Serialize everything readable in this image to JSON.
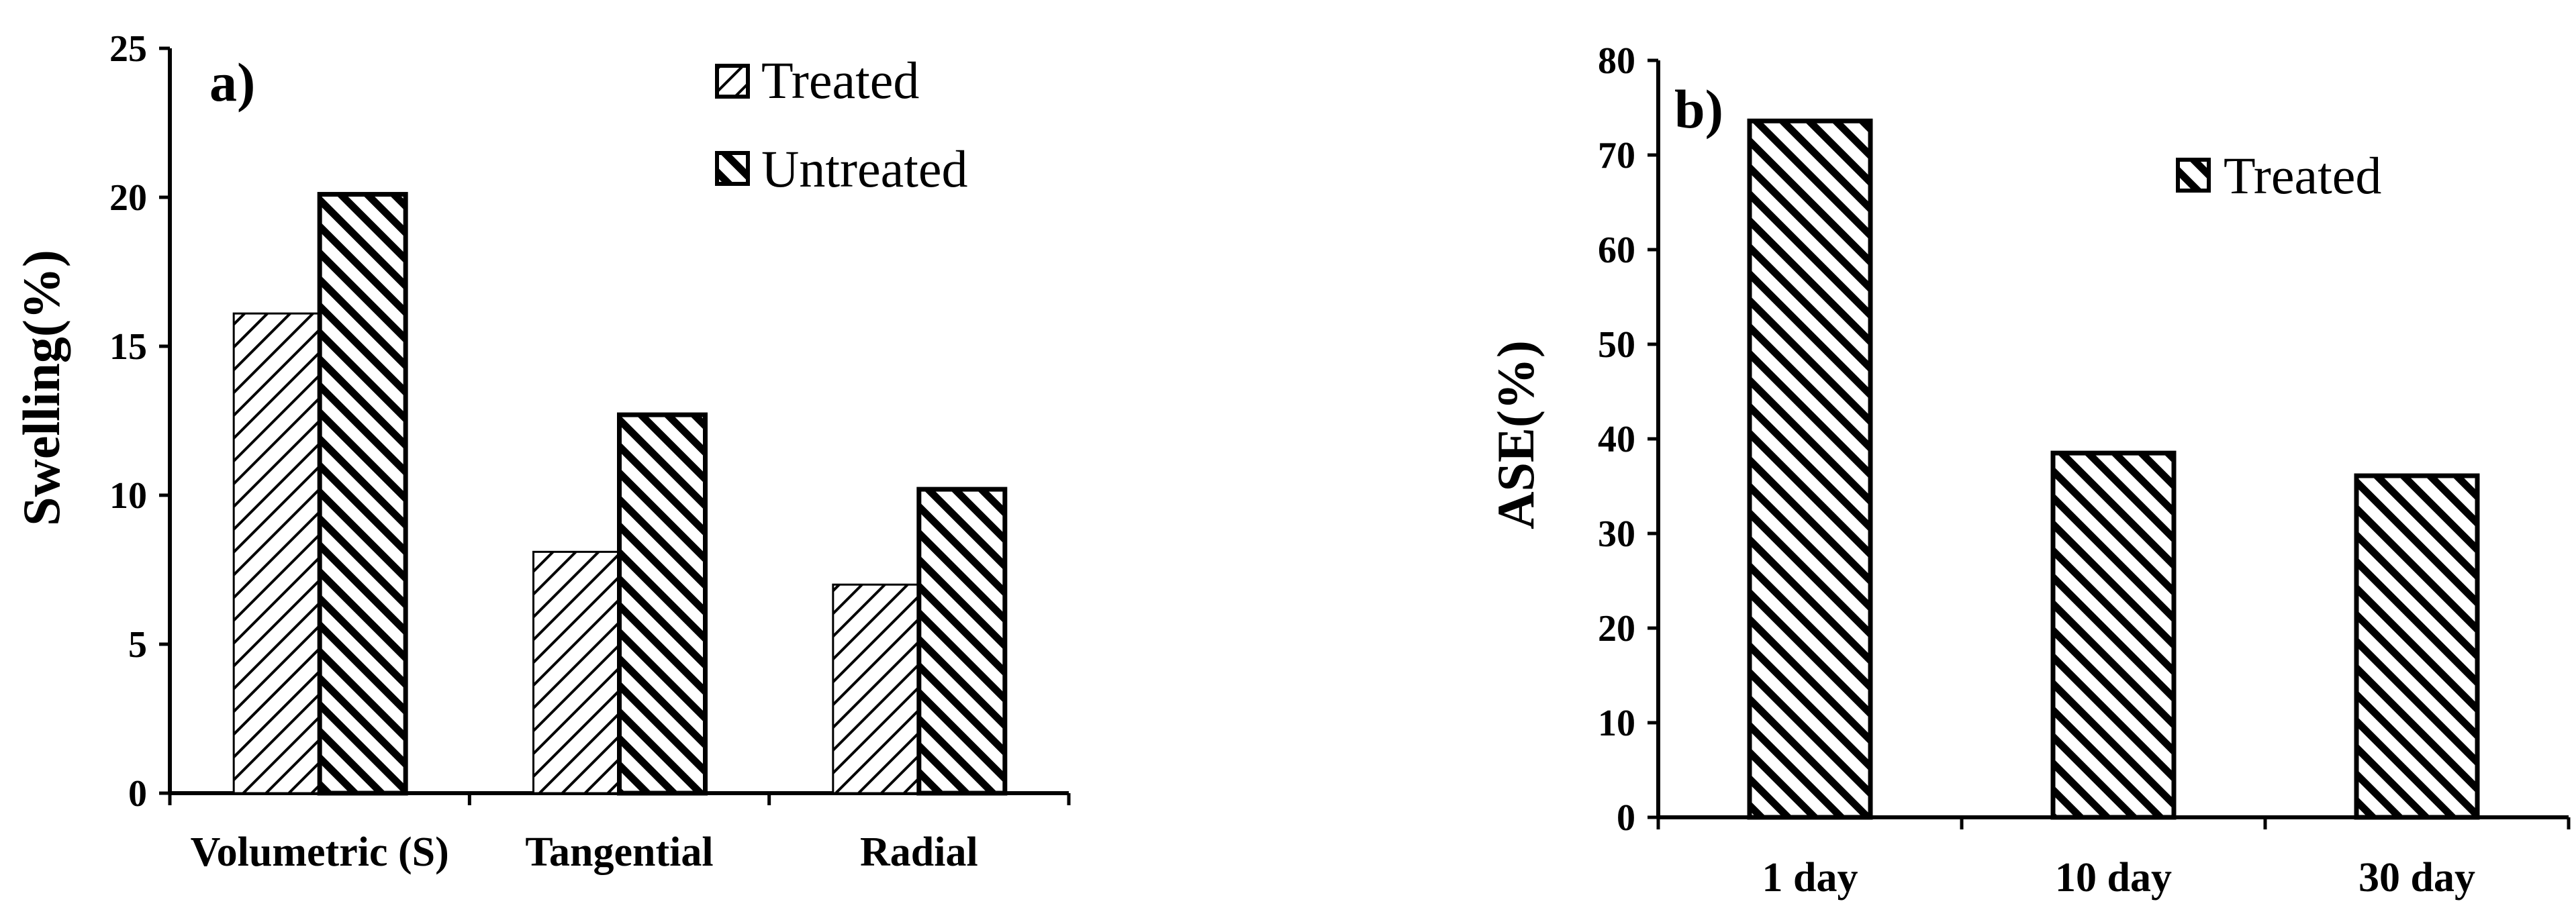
{
  "chart_data": [
    {
      "type": "bar",
      "panel_label": "a)",
      "categories": [
        "Volumetric (S)",
        "Tangential",
        "Radial"
      ],
      "series": [
        {
          "name": "Treated",
          "values": [
            16.1,
            8.1,
            7.0
          ],
          "pattern": "light-backslash-hatch"
        },
        {
          "name": "Untreated",
          "values": [
            20.1,
            12.7,
            10.2
          ],
          "pattern": "bold-slash-hatch"
        }
      ],
      "ylabel": "Swelling(%)",
      "xlabel": "",
      "ylim": [
        0,
        25
      ],
      "yticks": [
        0,
        5,
        10,
        15,
        20,
        25
      ],
      "grid": false,
      "legend": "top-right"
    },
    {
      "type": "bar",
      "panel_label": "b)",
      "categories": [
        "1 day",
        "10 day",
        "30 day"
      ],
      "series": [
        {
          "name": "Treated",
          "values": [
            73.6,
            38.5,
            36.1
          ],
          "pattern": "bold-slash-hatch"
        }
      ],
      "ylabel": "ASE(%)",
      "xlabel": "",
      "ylim": [
        0,
        80
      ],
      "yticks": [
        0,
        10,
        20,
        30,
        40,
        50,
        60,
        70,
        80
      ],
      "grid": false,
      "legend": "top-right"
    }
  ],
  "colors": {
    "bar_fill": "#ffffff",
    "hatch": "#000000",
    "axis": "#000000"
  }
}
